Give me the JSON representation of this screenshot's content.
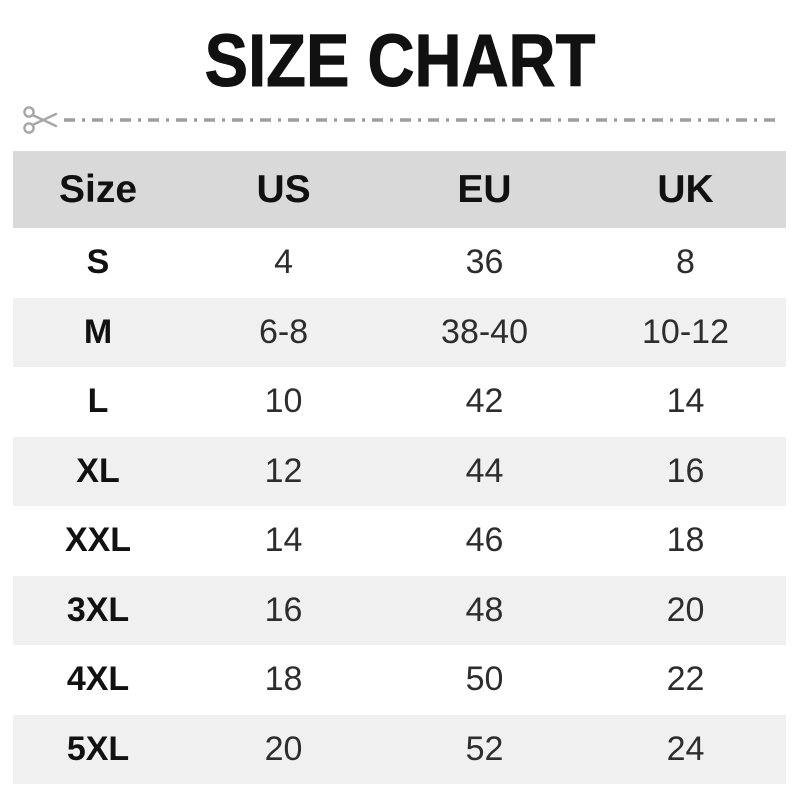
{
  "page": {
    "title": "SIZE CHART"
  },
  "icons": {
    "scissors": "scissors-icon",
    "dashed_cut_line": "dash-dot horizontal rule"
  },
  "table": {
    "columns": [
      "Size",
      "US",
      "EU",
      "UK"
    ],
    "rows": [
      {
        "cells": [
          "S",
          "4",
          "36",
          "8"
        ]
      },
      {
        "cells": [
          "M",
          "6-8",
          "38-40",
          "10-12"
        ]
      },
      {
        "cells": [
          "L",
          "10",
          "42",
          "14"
        ]
      },
      {
        "cells": [
          "XL",
          "12",
          "44",
          "16"
        ]
      },
      {
        "cells": [
          "XXL",
          "14",
          "46",
          "18"
        ]
      },
      {
        "cells": [
          "3XL",
          "16",
          "48",
          "20"
        ]
      },
      {
        "cells": [
          "4XL",
          "18",
          "50",
          "22"
        ]
      },
      {
        "cells": [
          "5XL",
          "20",
          "52",
          "24"
        ]
      }
    ]
  },
  "colors": {
    "header_bg": "#d9d9d9",
    "stripe_bg": "#f0f0f0",
    "title_text": "#111111",
    "value_text": "#2d2d2d",
    "cut_line": "#9e9e9e"
  },
  "chart_data": {
    "type": "table",
    "title": "SIZE CHART",
    "columns": [
      "Size",
      "US",
      "EU",
      "UK"
    ],
    "rows": [
      [
        "S",
        "4",
        "36",
        "8"
      ],
      [
        "M",
        "6-8",
        "38-40",
        "10-12"
      ],
      [
        "L",
        "10",
        "42",
        "14"
      ],
      [
        "XL",
        "12",
        "44",
        "16"
      ],
      [
        "XXL",
        "14",
        "46",
        "18"
      ],
      [
        "3XL",
        "16",
        "48",
        "20"
      ],
      [
        "4XL",
        "18",
        "50",
        "22"
      ],
      [
        "5XL",
        "20",
        "52",
        "24"
      ]
    ]
  }
}
